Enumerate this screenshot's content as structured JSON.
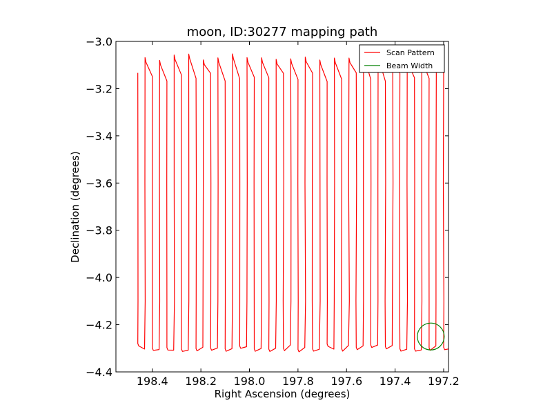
{
  "chart_data": {
    "type": "line",
    "title": "moon, ID:30277 mapping path",
    "xlabel": "Right Ascension (degrees)",
    "ylabel": "Declination (degrees)",
    "xlim": [
      198.55,
      197.18
    ],
    "ylim": [
      -4.4,
      -3.0
    ],
    "x_inverted": true,
    "xticks": [
      198.4,
      198.2,
      198.0,
      197.8,
      197.6,
      197.4,
      197.2
    ],
    "xtick_labels": [
      "198.4",
      "198.2",
      "198.0",
      "197.8",
      "197.6",
      "197.4",
      "197.2"
    ],
    "yticks": [
      -3.0,
      -3.2,
      -3.4,
      -3.6,
      -3.8,
      -4.0,
      -4.2,
      -4.4
    ],
    "ytick_labels": [
      "−3.0",
      "−3.2",
      "−3.4",
      "−3.6",
      "−3.8",
      "−4.0",
      "−4.2",
      "−4.4"
    ],
    "grid": false,
    "legend_position": "top-right",
    "series": [
      {
        "name": "Scan Pattern",
        "color": "#ff0000",
        "scan_start_ra": 198.46,
        "scan_spacing_ra": 0.03,
        "scan_count": 44,
        "dec_low": -4.29,
        "dec_high": -3.09
      },
      {
        "name": "Beam Width",
        "color": "#008000",
        "center_ra": 197.253,
        "center_dec": -4.25,
        "radius_deg": 0.057
      }
    ]
  }
}
